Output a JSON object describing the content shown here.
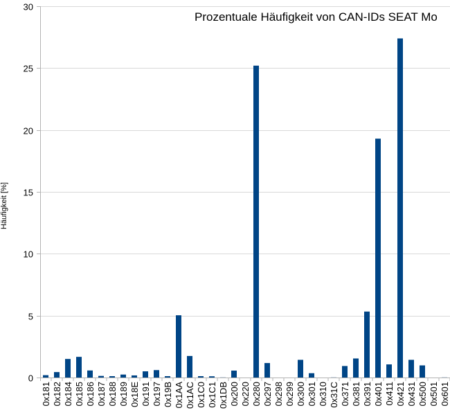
{
  "chart_data": {
    "type": "bar",
    "title": "Prozentuale Häufigkeit von CAN-IDs SEAT Mo",
    "xlabel": "",
    "ylabel": "Häufigkeit [%]",
    "ylim": [
      0,
      30
    ],
    "yticks": [
      0,
      5,
      10,
      15,
      20,
      25,
      30
    ],
    "grid": true,
    "bar_color": "#004586",
    "categories": [
      "0x181",
      "0x182",
      "0x184",
      "0x185",
      "0x186",
      "0x187",
      "0x188",
      "0x189",
      "0x18E",
      "0x191",
      "0x197",
      "0x19B",
      "0x1AA",
      "0x1AC",
      "0x1C0",
      "0x1C1",
      "0x1DB",
      "0x200",
      "0x220",
      "0x280",
      "0x297",
      "0x298",
      "0x299",
      "0x300",
      "0x301",
      "0x310",
      "0x31C",
      "0x371",
      "0x381",
      "0x391",
      "0x401",
      "0x411",
      "0x421",
      "0x431",
      "0x500",
      "0x501",
      "0x601"
    ],
    "values": [
      0.19,
      0.44,
      1.5,
      1.67,
      0.57,
      0.13,
      0.11,
      0.24,
      0.17,
      0.5,
      0.6,
      0.11,
      5.03,
      1.74,
      0.11,
      0.1,
      0.01,
      0.56,
      0,
      25.2,
      1.17,
      0,
      0,
      1.43,
      0.35,
      0,
      0.01,
      0.93,
      1.54,
      5.33,
      19.3,
      1.06,
      27.4,
      1.43,
      0.98,
      0,
      0.01
    ]
  }
}
